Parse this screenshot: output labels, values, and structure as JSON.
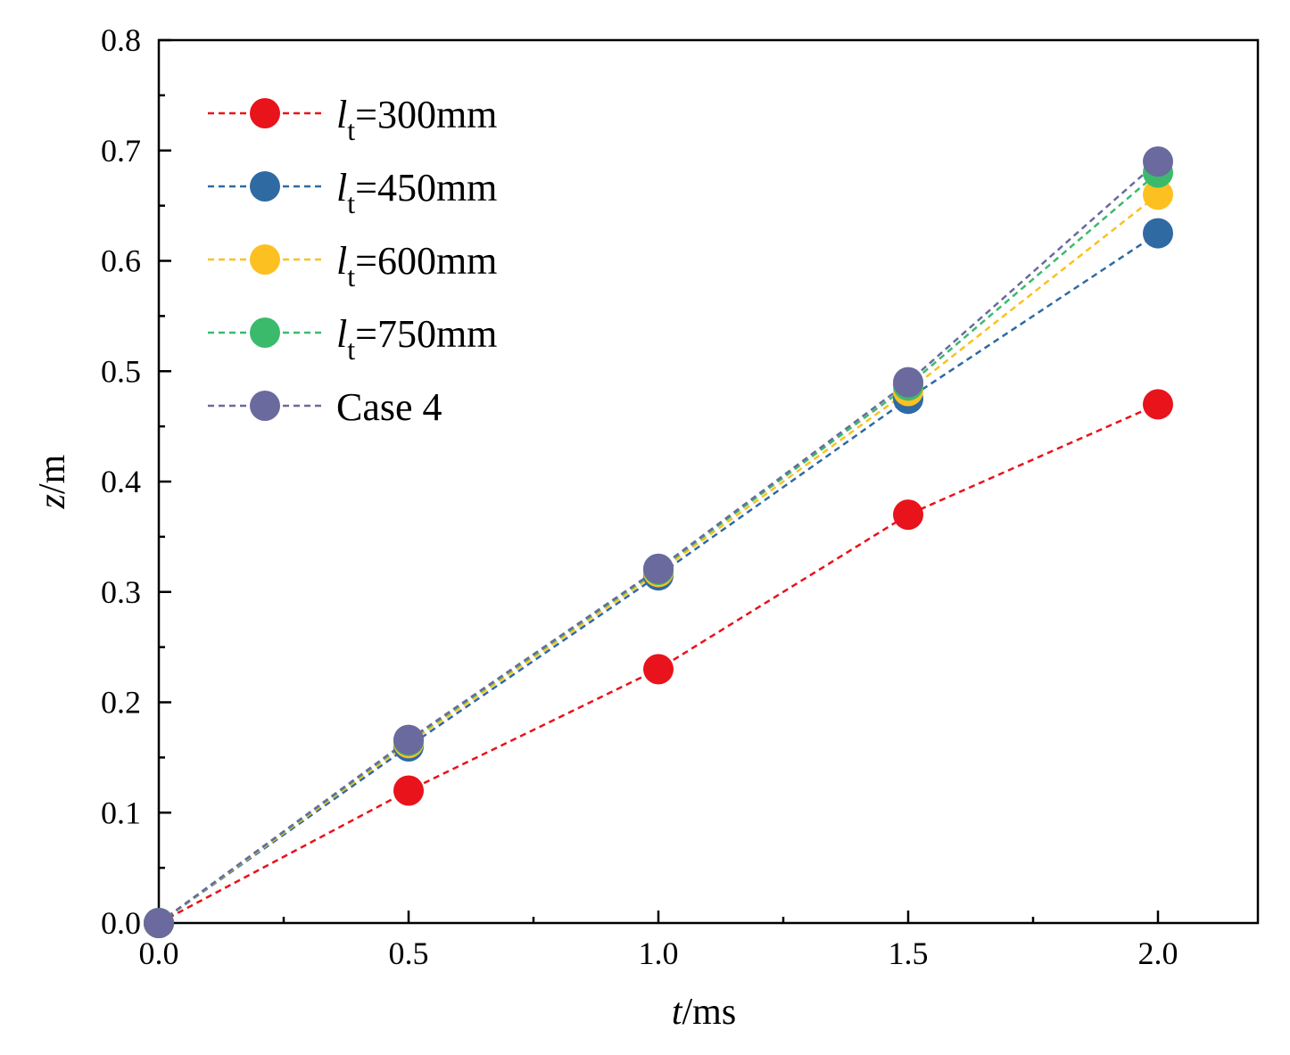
{
  "chart_data": {
    "type": "scatter",
    "title": "",
    "xlabel": {
      "var": "t",
      "unit": "/ms"
    },
    "ylabel": {
      "var": "z",
      "unit": "/m"
    },
    "xlim": [
      0,
      2.2
    ],
    "ylim": [
      0,
      0.8
    ],
    "xticks": [
      "0.0",
      "0.5",
      "1.0",
      "1.5",
      "2.0"
    ],
    "yticks": [
      "0.0",
      "0.1",
      "0.2",
      "0.3",
      "0.4",
      "0.5",
      "0.6",
      "0.7",
      "0.8"
    ],
    "grid": false,
    "legend_position": "top-left",
    "line_style": "dashed",
    "x": [
      0,
      0.5,
      1.0,
      1.5,
      2.0
    ],
    "series": [
      {
        "name": "300mm",
        "prefix": "l",
        "sub": "t",
        "color": "#e8131b",
        "values": [
          0,
          0.12,
          0.23,
          0.37,
          0.47
        ]
      },
      {
        "name": "450mm",
        "prefix": "l",
        "sub": "t",
        "color": "#2f6aa3",
        "values": [
          0,
          0.16,
          0.315,
          0.475,
          0.625
        ]
      },
      {
        "name": "600mm",
        "prefix": "l",
        "sub": "t",
        "color": "#fcc020",
        "values": [
          0,
          0.163,
          0.318,
          0.482,
          0.66
        ]
      },
      {
        "name": "750mm",
        "prefix": "l",
        "sub": "t",
        "color": "#3cba6c",
        "values": [
          0,
          0.165,
          0.32,
          0.487,
          0.68
        ]
      },
      {
        "name": "Case 4",
        "prefix": "",
        "sub": "",
        "color": "#6a6a9e",
        "values": [
          0,
          0.166,
          0.321,
          0.49,
          0.69
        ]
      }
    ]
  }
}
